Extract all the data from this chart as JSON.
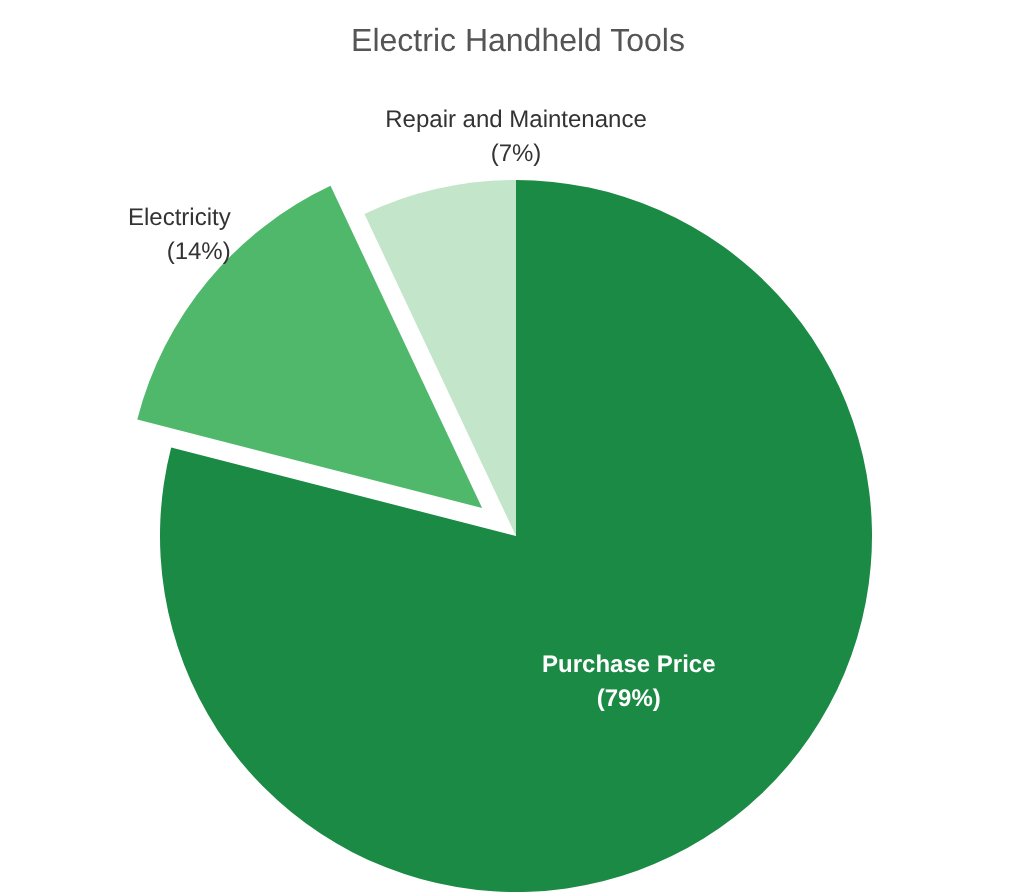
{
  "chart_data": {
    "type": "pie",
    "title": "Electric Handheld Tools",
    "categories": [
      "Purchase Price",
      "Electricity",
      "Repair and Maintenance"
    ],
    "values": [
      79,
      14,
      7
    ],
    "colors": [
      "#1b8a44",
      "#4fb86b",
      "#c3e5c9"
    ],
    "value_labels": [
      "(79%)",
      "(14%)",
      "(7%)"
    ],
    "legend": false
  }
}
